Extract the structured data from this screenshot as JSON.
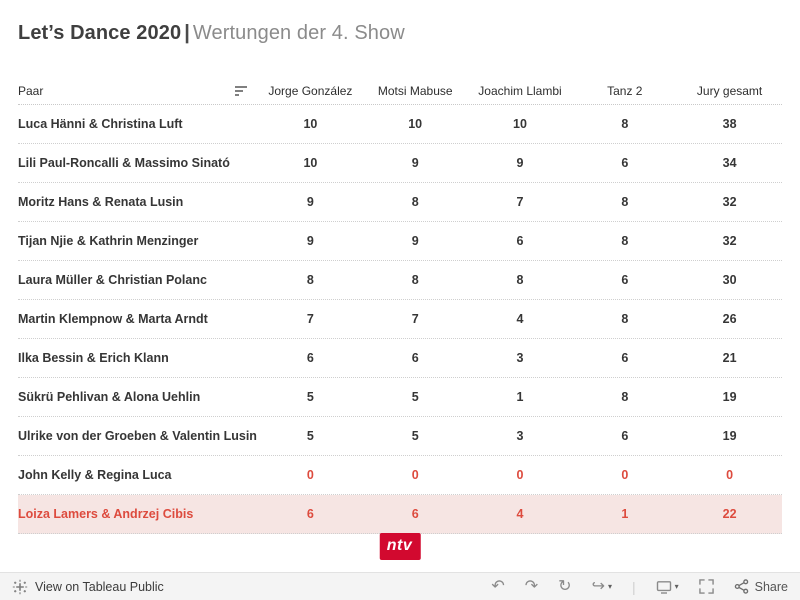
{
  "title": {
    "main": "Let’s Dance 2020",
    "separator": "|",
    "subtitle": "Wertungen der 4. Show"
  },
  "table": {
    "columns": [
      "Paar",
      "Jorge González",
      "Motsi Mabuse",
      "Joachim Llambi",
      "Tanz 2",
      "Jury gesamt"
    ],
    "rows": [
      {
        "pair": "Luca Hänni & Christina Luft",
        "values": [
          "10",
          "10",
          "10",
          "8",
          "38"
        ],
        "style": "normal"
      },
      {
        "pair": "Lili Paul-Roncalli & Massimo Sinató",
        "values": [
          "10",
          "9",
          "9",
          "6",
          "34"
        ],
        "style": "normal"
      },
      {
        "pair": "Moritz Hans & Renata Lusin",
        "values": [
          "9",
          "8",
          "7",
          "8",
          "32"
        ],
        "style": "normal"
      },
      {
        "pair": "Tijan Njie & Kathrin Menzinger",
        "values": [
          "9",
          "9",
          "6",
          "8",
          "32"
        ],
        "style": "normal"
      },
      {
        "pair": "Laura Müller & Christian Polanc",
        "values": [
          "8",
          "8",
          "8",
          "6",
          "30"
        ],
        "style": "normal"
      },
      {
        "pair": "Martin Klempnow & Marta Arndt",
        "values": [
          "7",
          "7",
          "4",
          "8",
          "26"
        ],
        "style": "normal"
      },
      {
        "pair": "Ilka Bessin & Erich Klann",
        "values": [
          "6",
          "6",
          "3",
          "6",
          "21"
        ],
        "style": "normal"
      },
      {
        "pair": "Sükrü Pehlivan & Alona Uehlin",
        "values": [
          "5",
          "5",
          "1",
          "8",
          "19"
        ],
        "style": "normal"
      },
      {
        "pair": "Ulrike von der Groeben & Valentin Lusin",
        "values": [
          "5",
          "5",
          "3",
          "6",
          "19"
        ],
        "style": "normal"
      },
      {
        "pair": "John Kelly & Regina Luca",
        "values": [
          "0",
          "0",
          "0",
          "0",
          "0"
        ],
        "style": "red-values"
      },
      {
        "pair": "Loiza Lamers & Andrzej Cibis",
        "values": [
          "6",
          "6",
          "4",
          "1",
          "22"
        ],
        "style": "highlight"
      }
    ]
  },
  "chart_data": {
    "type": "table",
    "title": "Let’s Dance 2020 | Wertungen der 4. Show",
    "columns": [
      "Paar",
      "Jorge González",
      "Motsi Mabuse",
      "Joachim Llambi",
      "Tanz 2",
      "Jury gesamt"
    ],
    "rows": [
      [
        "Luca Hänni & Christina Luft",
        10,
        10,
        10,
        8,
        38
      ],
      [
        "Lili Paul-Roncalli & Massimo Sinató",
        10,
        9,
        9,
        6,
        34
      ],
      [
        "Moritz Hans & Renata Lusin",
        9,
        8,
        7,
        8,
        32
      ],
      [
        "Tijan Njie & Kathrin Menzinger",
        9,
        9,
        6,
        8,
        32
      ],
      [
        "Laura Müller & Christian Polanc",
        8,
        8,
        8,
        6,
        30
      ],
      [
        "Martin Klempnow & Marta Arndt",
        7,
        7,
        4,
        8,
        26
      ],
      [
        "Ilka Bessin & Erich Klann",
        6,
        6,
        3,
        6,
        21
      ],
      [
        "Sükrü Pehlivan & Alona Uehlin",
        5,
        5,
        1,
        8,
        19
      ],
      [
        "Ulrike von der Groeben & Valentin Lusin",
        5,
        5,
        3,
        6,
        19
      ],
      [
        "John Kelly & Regina Luca",
        0,
        0,
        0,
        0,
        0
      ],
      [
        "Loiza Lamers & Andrzej Cibis",
        6,
        6,
        4,
        1,
        22
      ]
    ]
  },
  "logo": {
    "text": "ntv",
    "background": "#d2092f",
    "text_color": "#ffffff"
  },
  "footer": {
    "view_label": "View on Tableau Public",
    "share_label": "Share",
    "icons": {
      "undo": "↶",
      "redo": "↷",
      "replay": "↻",
      "forward": "↪",
      "caret": "▾",
      "divider": "|"
    }
  },
  "colors": {
    "accent_red": "#dd4b3e",
    "highlight_bg": "#f6e5e3"
  }
}
